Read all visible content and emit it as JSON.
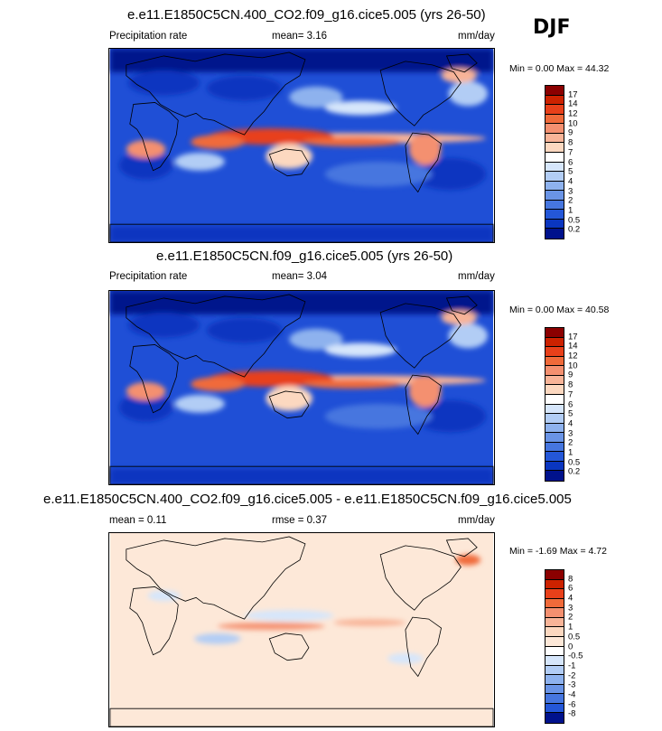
{
  "season": "DJF",
  "panels": [
    {
      "id": "top",
      "title": "e.e11.E1850C5CN.400_CO2.f09_g16.cice5.005 (yrs 26-50)",
      "left_label": "Precipitation rate",
      "center_label": "mean=  3.16",
      "right_label": "mm/day",
      "minmax": "Min =   0.00 Max =  44.32",
      "levels": [
        "17",
        "14",
        "12",
        "10",
        "9",
        "8",
        "7",
        "6",
        "5",
        "4",
        "3",
        "2",
        "1",
        "0.5",
        "0.2"
      ],
      "colors": [
        "#8b0000",
        "#cc2200",
        "#e8401a",
        "#f06a3a",
        "#f49070",
        "#f8b498",
        "#fcd8c0",
        "#ffffff",
        "#d6e6fb",
        "#b2cdf5",
        "#8eb2ee",
        "#6a94e6",
        "#4676df",
        "#2457d8",
        "#0a36c0",
        "#00128c"
      ],
      "field": "model"
    },
    {
      "id": "middle",
      "title": "e.e11.E1850C5CN.f09_g16.cice5.005 (yrs 26-50)",
      "left_label": "Precipitation rate",
      "center_label": "mean=  3.04",
      "right_label": "mm/day",
      "minmax": "Min =   0.00 Max =  40.58",
      "levels": [
        "17",
        "14",
        "12",
        "10",
        "9",
        "8",
        "7",
        "6",
        "5",
        "4",
        "3",
        "2",
        "1",
        "0.5",
        "0.2"
      ],
      "colors": [
        "#8b0000",
        "#cc2200",
        "#e8401a",
        "#f06a3a",
        "#f49070",
        "#f8b498",
        "#fcd8c0",
        "#ffffff",
        "#d6e6fb",
        "#b2cdf5",
        "#8eb2ee",
        "#6a94e6",
        "#4676df",
        "#2457d8",
        "#0a36c0",
        "#00128c"
      ],
      "field": "model"
    },
    {
      "id": "bottom",
      "title": "e.e11.E1850C5CN.400_CO2.f09_g16.cice5.005 - e.e11.E1850C5CN.f09_g16.cice5.005",
      "left_label": "mean =  0.11",
      "center_label": "rmse =  0.37",
      "right_label": "mm/day",
      "minmax": "Min =  -1.69 Max =  4.72",
      "levels": [
        "8",
        "6",
        "4",
        "3",
        "2",
        "1",
        "0.5",
        "0",
        "-0.5",
        "-1",
        "-2",
        "-3",
        "-4",
        "-6",
        "-8"
      ],
      "colors": [
        "#8b0000",
        "#cc2200",
        "#e8401a",
        "#f06a3a",
        "#f49070",
        "#f8b498",
        "#fcd8c0",
        "#fde8d8",
        "#ffffff",
        "#d6e6fb",
        "#b2cdf5",
        "#8eb2ee",
        "#6a94e6",
        "#4676df",
        "#2457d8",
        "#00128c"
      ],
      "field": "diff"
    }
  ]
}
